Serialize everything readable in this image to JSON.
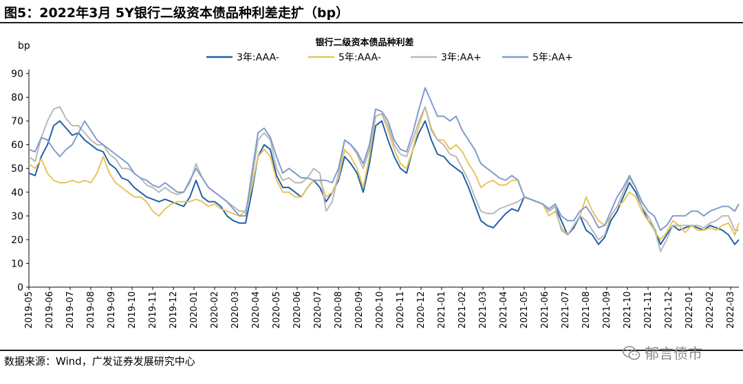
{
  "figure": {
    "title": "图5：2022年3月 5Y银行二级资本债品种利差走扩（bp）",
    "source": "数据来源：Wind，广发证券发展研究中心",
    "watermark": "郁言债市"
  },
  "chart_data": {
    "type": "line",
    "title": "银行二级资本债品种利差",
    "ylabel": "bp",
    "xlabel": "",
    "ylim": [
      0,
      90
    ],
    "yticks": [
      "0",
      "10",
      "20",
      "30",
      "40",
      "50",
      "60",
      "70",
      "80",
      "90"
    ],
    "categories": [
      "2019-05",
      "2019-06",
      "2019-07",
      "2019-08",
      "2019-09",
      "2019-10",
      "2019-11",
      "2019-12",
      "2020-01",
      "2020-02",
      "2020-03",
      "2020-04",
      "2020-05",
      "2020-06",
      "2020-07",
      "2020-08",
      "2020-09",
      "2020-10",
      "2020-11",
      "2020-12",
      "2021-01",
      "2021-02",
      "2021-03",
      "2021-04",
      "2021-05",
      "2021-06",
      "2021-07",
      "2021-08",
      "2021-09",
      "2021-10",
      "2021-11",
      "2021-12",
      "2022-01",
      "2022-02",
      "2022-03"
    ],
    "x_end": 34.4,
    "legend_position": "top",
    "series": [
      {
        "name": "3年:AAA-",
        "color": "#1f5fa8",
        "x": [
          0,
          0.3,
          0.6,
          0.9,
          1.2,
          1.5,
          1.8,
          2.1,
          2.4,
          2.7,
          3.0,
          3.3,
          3.6,
          3.9,
          4.2,
          4.5,
          4.8,
          5.1,
          5.4,
          5.7,
          6.0,
          6.3,
          6.6,
          6.9,
          7.2,
          7.5,
          7.8,
          8.1,
          8.4,
          8.7,
          9.0,
          9.3,
          9.6,
          9.9,
          10.2,
          10.5,
          10.8,
          11.1,
          11.4,
          11.7,
          12.0,
          12.3,
          12.6,
          12.9,
          13.2,
          13.5,
          13.8,
          14.1,
          14.4,
          14.7,
          15.0,
          15.3,
          15.6,
          15.9,
          16.2,
          16.5,
          16.8,
          17.1,
          17.4,
          17.7,
          18.0,
          18.3,
          18.6,
          18.9,
          19.2,
          19.5,
          19.8,
          20.1,
          20.4,
          20.7,
          21.0,
          21.3,
          21.6,
          21.9,
          22.2,
          22.5,
          22.8,
          23.1,
          23.4,
          23.7,
          24.0,
          24.3,
          24.6,
          24.9,
          25.2,
          25.5,
          25.8,
          26.1,
          26.4,
          26.7,
          27.0,
          27.3,
          27.6,
          27.9,
          28.2,
          28.5,
          28.8,
          29.1,
          29.4,
          29.7,
          30.0,
          30.3,
          30.6,
          30.9,
          31.2,
          31.5,
          31.8,
          32.1,
          32.4,
          32.7,
          33.0,
          33.3,
          33.6,
          33.9,
          34.2,
          34.4
        ],
        "values": [
          48,
          47,
          55,
          60,
          68,
          70,
          67,
          64,
          65,
          62,
          60,
          58,
          57,
          52,
          50,
          46,
          45,
          42,
          40,
          38,
          37,
          36,
          37,
          36,
          35,
          34,
          38,
          45,
          38,
          36,
          36,
          34,
          30,
          28,
          27,
          27,
          40,
          55,
          60,
          58,
          47,
          42,
          42,
          40,
          38,
          42,
          45,
          42,
          36,
          40,
          45,
          55,
          52,
          48,
          40,
          52,
          68,
          70,
          62,
          55,
          50,
          48,
          58,
          65,
          70,
          62,
          56,
          55,
          52,
          50,
          48,
          42,
          35,
          28,
          26,
          25,
          28,
          31,
          33,
          32,
          38,
          37,
          36,
          35,
          32,
          34,
          28,
          22,
          25,
          30,
          24,
          22,
          18,
          21,
          28,
          32,
          38,
          44,
          40,
          34,
          28,
          25,
          18,
          22,
          26,
          24,
          25,
          26,
          25,
          24,
          26,
          25,
          24,
          22,
          18,
          20
        ]
      },
      {
        "name": "5年:AAA-",
        "color": "#e8c45a",
        "x": [
          0,
          0.3,
          0.6,
          0.9,
          1.2,
          1.5,
          1.8,
          2.1,
          2.4,
          2.7,
          3.0,
          3.3,
          3.6,
          3.9,
          4.2,
          4.5,
          4.8,
          5.1,
          5.4,
          5.7,
          6.0,
          6.3,
          6.6,
          6.9,
          7.2,
          7.5,
          7.8,
          8.1,
          8.4,
          8.7,
          9.0,
          9.3,
          9.6,
          9.9,
          10.2,
          10.5,
          10.8,
          11.1,
          11.4,
          11.7,
          12.0,
          12.3,
          12.6,
          12.9,
          13.2,
          13.5,
          13.8,
          14.1,
          14.4,
          14.7,
          15.0,
          15.3,
          15.6,
          15.9,
          16.2,
          16.5,
          16.8,
          17.1,
          17.4,
          17.7,
          18.0,
          18.3,
          18.6,
          18.9,
          19.2,
          19.5,
          19.8,
          20.1,
          20.4,
          20.7,
          21.0,
          21.3,
          21.6,
          21.9,
          22.2,
          22.5,
          22.8,
          23.1,
          23.4,
          23.7,
          24.0,
          24.3,
          24.6,
          24.9,
          25.2,
          25.5,
          25.8,
          26.1,
          26.4,
          26.7,
          27.0,
          27.3,
          27.6,
          27.9,
          28.2,
          28.5,
          28.8,
          29.1,
          29.4,
          29.7,
          30.0,
          30.3,
          30.6,
          30.9,
          31.2,
          31.5,
          31.8,
          32.1,
          32.4,
          32.7,
          33.0,
          33.3,
          33.6,
          33.9,
          34.2,
          34.4
        ],
        "values": [
          52,
          50,
          54,
          48,
          45,
          44,
          44,
          45,
          44,
          45,
          44,
          48,
          55,
          48,
          44,
          42,
          40,
          38,
          38,
          36,
          32,
          30,
          33,
          35,
          36,
          36,
          36,
          37,
          36,
          34,
          35,
          33,
          32,
          31,
          30,
          32,
          42,
          55,
          58,
          55,
          45,
          40,
          40,
          38,
          38,
          42,
          45,
          45,
          38,
          40,
          46,
          58,
          55,
          50,
          42,
          55,
          72,
          73,
          66,
          58,
          52,
          50,
          58,
          68,
          76,
          67,
          62,
          62,
          58,
          60,
          57,
          52,
          48,
          42,
          44,
          45,
          43,
          43,
          45,
          45,
          38,
          37,
          36,
          35,
          30,
          32,
          25,
          22,
          26,
          30,
          38,
          32,
          28,
          26,
          30,
          34,
          36,
          40,
          38,
          32,
          28,
          24,
          20,
          23,
          28,
          26,
          23,
          26,
          24,
          24,
          25,
          24,
          26,
          27,
          22,
          27
        ]
      },
      {
        "name": "3年:AA+",
        "color": "#b8b8b8",
        "x": [
          0,
          0.3,
          0.6,
          0.9,
          1.2,
          1.5,
          1.8,
          2.1,
          2.4,
          2.7,
          3.0,
          3.3,
          3.6,
          3.9,
          4.2,
          4.5,
          4.8,
          5.1,
          5.4,
          5.7,
          6.0,
          6.3,
          6.6,
          6.9,
          7.2,
          7.5,
          7.8,
          8.1,
          8.4,
          8.7,
          9.0,
          9.3,
          9.6,
          9.9,
          10.2,
          10.5,
          10.8,
          11.1,
          11.4,
          11.7,
          12.0,
          12.3,
          12.6,
          12.9,
          13.2,
          13.5,
          13.8,
          14.1,
          14.4,
          14.7,
          15.0,
          15.3,
          15.6,
          15.9,
          16.2,
          16.5,
          16.8,
          17.1,
          17.4,
          17.7,
          18.0,
          18.3,
          18.6,
          18.9,
          19.2,
          19.5,
          19.8,
          20.1,
          20.4,
          20.7,
          21.0,
          21.3,
          21.6,
          21.9,
          22.2,
          22.5,
          22.8,
          23.1,
          23.4,
          23.7,
          24.0,
          24.3,
          24.6,
          24.9,
          25.2,
          25.5,
          25.8,
          26.1,
          26.4,
          26.7,
          27.0,
          27.3,
          27.6,
          27.9,
          28.2,
          28.5,
          28.8,
          29.1,
          29.4,
          29.7,
          30.0,
          30.3,
          30.6,
          30.9,
          31.2,
          31.5,
          31.8,
          32.1,
          32.4,
          32.7,
          33.0,
          33.3,
          33.6,
          33.9,
          34.2,
          34.4
        ],
        "values": [
          55,
          53,
          63,
          70,
          75,
          76,
          71,
          68,
          68,
          65,
          62,
          60,
          60,
          56,
          54,
          50,
          50,
          48,
          46,
          43,
          42,
          40,
          42,
          40,
          39,
          40,
          44,
          52,
          46,
          42,
          40,
          38,
          36,
          34,
          32,
          32,
          45,
          62,
          65,
          62,
          50,
          45,
          46,
          44,
          44,
          46,
          50,
          48,
          32,
          36,
          48,
          62,
          60,
          56,
          50,
          58,
          72,
          73,
          68,
          60,
          56,
          55,
          62,
          70,
          76,
          66,
          62,
          60,
          56,
          55,
          50,
          45,
          38,
          32,
          31,
          31,
          33,
          34,
          35,
          36,
          38,
          37,
          36,
          35,
          32,
          34,
          24,
          22,
          26,
          30,
          28,
          24,
          20,
          22,
          30,
          34,
          40,
          46,
          42,
          34,
          30,
          25,
          15,
          20,
          26,
          26,
          26,
          26,
          26,
          25,
          27,
          28,
          30,
          30,
          24,
          24
        ]
      },
      {
        "name": "5年:AA+",
        "color": "#7f9bcd",
        "x": [
          0,
          0.3,
          0.6,
          0.9,
          1.2,
          1.5,
          1.8,
          2.1,
          2.4,
          2.7,
          3.0,
          3.3,
          3.6,
          3.9,
          4.2,
          4.5,
          4.8,
          5.1,
          5.4,
          5.7,
          6.0,
          6.3,
          6.6,
          6.9,
          7.2,
          7.5,
          7.8,
          8.1,
          8.4,
          8.7,
          9.0,
          9.3,
          9.6,
          9.9,
          10.2,
          10.5,
          10.8,
          11.1,
          11.4,
          11.7,
          12.0,
          12.3,
          12.6,
          12.9,
          13.2,
          13.5,
          13.8,
          14.1,
          14.4,
          14.7,
          15.0,
          15.3,
          15.6,
          15.9,
          16.2,
          16.5,
          16.8,
          17.1,
          17.4,
          17.7,
          18.0,
          18.3,
          18.6,
          18.9,
          19.2,
          19.5,
          19.8,
          20.1,
          20.4,
          20.7,
          21.0,
          21.3,
          21.6,
          21.9,
          22.2,
          22.5,
          22.8,
          23.1,
          23.4,
          23.7,
          24.0,
          24.3,
          24.6,
          24.9,
          25.2,
          25.5,
          25.8,
          26.1,
          26.4,
          26.7,
          27.0,
          27.3,
          27.6,
          27.9,
          28.2,
          28.5,
          28.8,
          29.1,
          29.4,
          29.7,
          30.0,
          30.3,
          30.6,
          30.9,
          31.2,
          31.5,
          31.8,
          32.1,
          32.4,
          32.7,
          33.0,
          33.3,
          33.6,
          33.9,
          34.2,
          34.4
        ],
        "values": [
          58,
          57,
          63,
          62,
          58,
          55,
          58,
          60,
          65,
          70,
          66,
          62,
          60,
          58,
          56,
          54,
          52,
          48,
          46,
          45,
          43,
          42,
          44,
          42,
          40,
          40,
          45,
          50,
          46,
          42,
          40,
          38,
          36,
          33,
          30,
          30,
          48,
          65,
          67,
          63,
          55,
          48,
          50,
          48,
          46,
          46,
          45,
          45,
          45,
          44,
          50,
          62,
          60,
          57,
          52,
          60,
          75,
          74,
          70,
          62,
          58,
          57,
          65,
          75,
          84,
          78,
          72,
          72,
          70,
          72,
          66,
          62,
          58,
          52,
          50,
          48,
          46,
          45,
          47,
          45,
          38,
          37,
          36,
          35,
          33,
          35,
          30,
          28,
          28,
          32,
          34,
          30,
          25,
          26,
          32,
          38,
          42,
          47,
          42,
          36,
          32,
          30,
          24,
          26,
          30,
          30,
          30,
          32,
          32,
          30,
          32,
          33,
          34,
          34,
          32,
          35
        ]
      }
    ]
  }
}
